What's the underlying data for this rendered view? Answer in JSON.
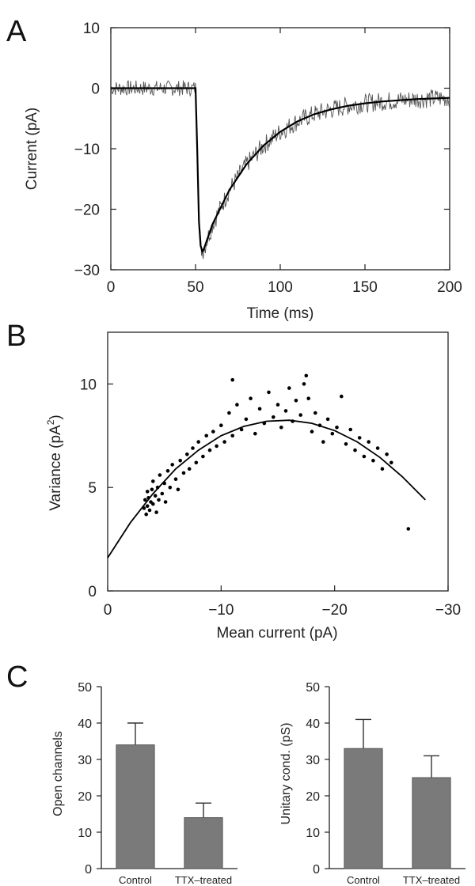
{
  "figure": {
    "panel_labels": [
      "A",
      "B",
      "C"
    ]
  },
  "chart_data": [
    {
      "panel": "A",
      "type": "line",
      "xlabel": "Time (ms)",
      "ylabel": "Current (pA)",
      "xlim": [
        0,
        200
      ],
      "ylim": [
        -30,
        10
      ],
      "xticks": [
        0,
        50,
        100,
        150,
        200
      ],
      "yticks": [
        -30,
        -20,
        -10,
        0,
        10
      ],
      "grid": false,
      "series": [
        {
          "style": "noisy trace",
          "x": [
            0,
            10,
            20,
            30,
            40,
            48,
            50,
            51,
            52,
            53,
            54,
            55,
            60,
            70,
            80,
            90,
            100,
            110,
            120,
            130,
            140,
            150,
            160,
            170,
            180,
            190,
            200
          ],
          "y": [
            0,
            0,
            0,
            0,
            0,
            0,
            0,
            -10,
            -22,
            -26,
            -27,
            -26.5,
            -22.5,
            -16.8,
            -12.6,
            -9.5,
            -7.2,
            -5.5,
            -4.3,
            -3.5,
            -2.9,
            -2.5,
            -2.2,
            -2.0,
            -1.8,
            -1.7,
            -1.6
          ]
        },
        {
          "style": "fit",
          "x": [
            0,
            10,
            20,
            30,
            40,
            48,
            50,
            51,
            52,
            53,
            54,
            55,
            60,
            70,
            80,
            90,
            100,
            110,
            120,
            130,
            140,
            150,
            160,
            170,
            180,
            190,
            200
          ],
          "y": [
            0,
            0,
            0,
            0,
            0,
            0,
            0,
            -10,
            -22,
            -26,
            -27,
            -26.5,
            -22.5,
            -16.8,
            -12.6,
            -9.5,
            -7.2,
            -5.5,
            -4.3,
            -3.5,
            -2.9,
            -2.5,
            -2.2,
            -2.0,
            -1.8,
            -1.7,
            -1.6
          ]
        }
      ]
    },
    {
      "panel": "B",
      "type": "scatter",
      "xlabel": "Mean current (pA)",
      "ylabel_main": "Variance (pA",
      "ylabel_sup": "2",
      "ylabel_end": ")",
      "xlim": [
        0,
        -30
      ],
      "ylim": [
        0,
        12.5
      ],
      "xticks": [
        0,
        -10,
        -20,
        -30
      ],
      "yticks": [
        0,
        5,
        10
      ],
      "grid": false,
      "points": [
        [
          -3.2,
          4.0
        ],
        [
          -3.3,
          4.4
        ],
        [
          -3.4,
          3.7
        ],
        [
          -3.5,
          4.8
        ],
        [
          -3.5,
          4.1
        ],
        [
          -3.6,
          4.5
        ],
        [
          -3.7,
          3.9
        ],
        [
          -3.8,
          4.3
        ],
        [
          -3.9,
          4.9
        ],
        [
          -4.0,
          4.2
        ],
        [
          -4.0,
          5.3
        ],
        [
          -4.2,
          4.6
        ],
        [
          -4.3,
          3.8
        ],
        [
          -4.4,
          5.0
        ],
        [
          -4.5,
          4.4
        ],
        [
          -4.6,
          5.6
        ],
        [
          -4.8,
          4.7
        ],
        [
          -5.0,
          5.2
        ],
        [
          -5.1,
          4.3
        ],
        [
          -5.3,
          5.8
        ],
        [
          -5.5,
          5.0
        ],
        [
          -5.7,
          6.1
        ],
        [
          -6.0,
          5.4
        ],
        [
          -6.2,
          4.9
        ],
        [
          -6.4,
          6.3
        ],
        [
          -6.7,
          5.7
        ],
        [
          -7.0,
          6.6
        ],
        [
          -7.2,
          5.9
        ],
        [
          -7.5,
          6.9
        ],
        [
          -7.8,
          6.2
        ],
        [
          -8.0,
          7.2
        ],
        [
          -8.4,
          6.5
        ],
        [
          -8.7,
          7.5
        ],
        [
          -9.0,
          6.8
        ],
        [
          -9.3,
          7.7
        ],
        [
          -9.6,
          7.0
        ],
        [
          -10.0,
          8.0
        ],
        [
          -10.3,
          7.2
        ],
        [
          -10.7,
          8.6
        ],
        [
          -11.0,
          7.5
        ],
        [
          -11.0,
          10.2
        ],
        [
          -11.4,
          9.0
        ],
        [
          -11.8,
          7.8
        ],
        [
          -12.2,
          8.3
        ],
        [
          -12.6,
          9.3
        ],
        [
          -13.0,
          7.6
        ],
        [
          -13.4,
          8.8
        ],
        [
          -13.8,
          8.1
        ],
        [
          -14.2,
          9.6
        ],
        [
          -14.6,
          8.4
        ],
        [
          -15.0,
          9.0
        ],
        [
          -15.3,
          7.9
        ],
        [
          -15.7,
          8.7
        ],
        [
          -16.0,
          9.8
        ],
        [
          -16.3,
          8.2
        ],
        [
          -16.6,
          9.2
        ],
        [
          -17.0,
          8.5
        ],
        [
          -17.3,
          10.0
        ],
        [
          -17.5,
          10.4
        ],
        [
          -17.7,
          9.3
        ],
        [
          -18.0,
          7.7
        ],
        [
          -18.3,
          8.6
        ],
        [
          -18.7,
          8.0
        ],
        [
          -19.0,
          7.2
        ],
        [
          -19.4,
          8.3
        ],
        [
          -19.8,
          7.6
        ],
        [
          -20.2,
          7.9
        ],
        [
          -20.6,
          9.4
        ],
        [
          -21.0,
          7.1
        ],
        [
          -21.4,
          7.8
        ],
        [
          -21.8,
          6.8
        ],
        [
          -22.2,
          7.4
        ],
        [
          -22.6,
          6.5
        ],
        [
          -23.0,
          7.2
        ],
        [
          -23.4,
          6.3
        ],
        [
          -23.8,
          6.9
        ],
        [
          -24.2,
          5.9
        ],
        [
          -24.6,
          6.6
        ],
        [
          -25.0,
          6.2
        ],
        [
          -26.5,
          3.0
        ]
      ],
      "fit": {
        "x": [
          0,
          -2,
          -4,
          -6,
          -8,
          -10,
          -12,
          -14,
          -16,
          -18,
          -20,
          -22,
          -24,
          -26,
          -28
        ],
        "y": [
          1.6,
          3.3,
          4.7,
          5.9,
          6.8,
          7.5,
          7.95,
          8.2,
          8.25,
          8.1,
          7.75,
          7.2,
          6.45,
          5.5,
          4.4
        ]
      }
    },
    {
      "panel": "C",
      "type": "bar",
      "ylabel": "Open channels",
      "categories": [
        "Control",
        "TTX–treated"
      ],
      "values": [
        34,
        14
      ],
      "errors": [
        6,
        4
      ],
      "ylim": [
        0,
        50
      ],
      "yticks": [
        0,
        10,
        20,
        30,
        40,
        50
      ],
      "bar_color": "#7a7a7a",
      "grid": false
    },
    {
      "panel": "C",
      "type": "bar",
      "ylabel": "Unitary cond. (pS)",
      "categories": [
        "Control",
        "TTX–treated"
      ],
      "values": [
        33,
        25
      ],
      "errors": [
        8,
        6
      ],
      "ylim": [
        0,
        50
      ],
      "yticks": [
        0,
        10,
        20,
        30,
        40,
        50
      ],
      "bar_color": "#7a7a7a",
      "grid": false
    }
  ]
}
